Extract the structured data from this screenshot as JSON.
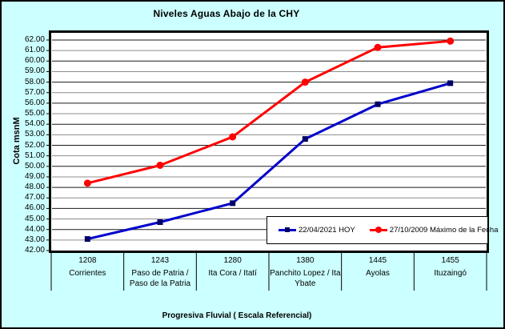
{
  "chart_data": {
    "type": "line",
    "title": "Niveles Aguas Abajo de la CHY",
    "xlabel": "Progresiva Fluvial ( Escala Referencial)",
    "ylabel": "Cota msnM",
    "ylim": [
      42,
      62
    ],
    "ytick_step": 1,
    "ytick_decimals": 2,
    "grid": true,
    "legend_position": "inside-bottom-right",
    "categories": [
      {
        "km": "1208",
        "name": "Corrientes"
      },
      {
        "km": "1243",
        "name": "Paso de Patria / Paso de la Patria"
      },
      {
        "km": "1280",
        "name": "Ita Cora / Itatí"
      },
      {
        "km": "1380",
        "name": "Panchito Lopez / Ita Ybate"
      },
      {
        "km": "1445",
        "name": "Ayolas"
      },
      {
        "km": "1455",
        "name": "Ituzaingó"
      }
    ],
    "series": [
      {
        "name": "22/04/2021 HOY",
        "color": "#0000CC",
        "marker": "square",
        "marker_color": "#000066",
        "values": [
          43.1,
          44.7,
          46.5,
          52.6,
          55.9,
          57.9
        ]
      },
      {
        "name": "27/10/2009 Máximo de la Fecha",
        "color": "#FF0000",
        "marker": "circle",
        "marker_color": "#FF0000",
        "values": [
          48.4,
          50.1,
          52.8,
          58.0,
          61.3,
          61.9
        ]
      }
    ]
  },
  "colors": {
    "background": "#CCFFFF",
    "plot_background": "#FFFFFF",
    "grid_dark": "#1A1A1A",
    "grid_light": "#8C8C8C",
    "border": "#000000"
  }
}
